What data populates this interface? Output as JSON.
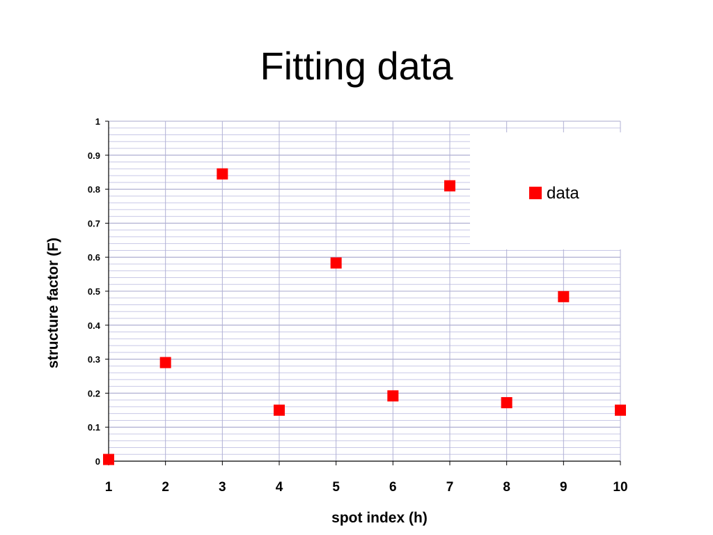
{
  "chart_data": {
    "type": "scatter",
    "title": "Fitting data",
    "xlabel": "spot index (h)",
    "ylabel": "structure factor (F)",
    "xlim": [
      1,
      10
    ],
    "ylim": [
      0,
      1
    ],
    "x_ticks": [
      "1",
      "2",
      "3",
      "4",
      "5",
      "6",
      "7",
      "8",
      "9",
      "10"
    ],
    "y_ticks": [
      "0",
      "0.1",
      "0.2",
      "0.3",
      "0.4",
      "0.5",
      "0.6",
      "0.7",
      "0.8",
      "0.9",
      "1"
    ],
    "grid": true,
    "legend_position": "top-right",
    "series": [
      {
        "name": "data",
        "color": "#ff0000",
        "marker": "square",
        "x": [
          1,
          2,
          3,
          4,
          5,
          6,
          7,
          8,
          9,
          10
        ],
        "y": [
          0.005,
          0.29,
          0.845,
          0.15,
          0.583,
          0.192,
          0.81,
          0.172,
          0.484,
          0.15
        ]
      }
    ]
  }
}
